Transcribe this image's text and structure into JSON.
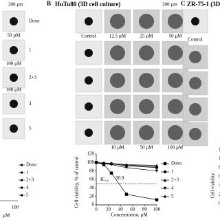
{
  "panel_a": {
    "scale_bar": "200 µm",
    "row_labels": [
      "Doxo",
      "1",
      "2+3",
      "4",
      "5"
    ],
    "captions": [
      "50 µM",
      "100 µM",
      "100 µM"
    ],
    "legend": [
      "Doxo",
      "1",
      "2+3",
      "4",
      "5"
    ],
    "axis_fragments": [
      "100",
      "µM"
    ]
  },
  "panel_b": {
    "letter": "B",
    "title": "HuTu80 (3D cell culture)",
    "scale_bar": "200 µm",
    "top_captions": [
      "Control",
      "12.5 µM",
      "25 µM",
      "50 µM"
    ],
    "bottom_captions": [
      "10 µM",
      "50 µM",
      "100 µM"
    ]
  },
  "panel_c": {
    "letter": "C",
    "title": "ZR-75-1 (3D",
    "caption": "Control",
    "yticks": [
      "120",
      "100",
      "80",
      "60",
      "40",
      "20",
      "0"
    ],
    "ylabel": "Cell viability"
  },
  "chart_data": {
    "type": "line",
    "xlabel": "Concentration, µM",
    "ylabel": "Cell viability, % of control",
    "x": [
      0,
      12.5,
      25,
      50,
      100
    ],
    "xlim": [
      0,
      100
    ],
    "xticks": [
      0,
      20,
      40,
      60,
      80,
      100
    ],
    "ylim": [
      0,
      120
    ],
    "yticks": [
      0,
      20,
      40,
      60,
      80,
      100,
      120
    ],
    "reference_line": 50,
    "annotations": [
      "IC₅₀",
      "30.9"
    ],
    "series": [
      {
        "name": "Doxo",
        "color": "#000000",
        "marker": "square",
        "values": [
          100,
          95,
          75,
          25,
          12
        ]
      },
      {
        "name": "1",
        "color": "#000000",
        "marker": "circle",
        "values": [
          100,
          98,
          97,
          92,
          88
        ]
      },
      {
        "name": "2+3",
        "color": "#000000",
        "marker": "triangle",
        "values": [
          100,
          99,
          98,
          95,
          93
        ]
      },
      {
        "name": "4",
        "color": "#000000",
        "marker": "down",
        "values": [
          100,
          97,
          95,
          88,
          80
        ]
      },
      {
        "name": "5",
        "color": "#000000",
        "marker": "diamond",
        "values": [
          100,
          98,
          96,
          94,
          90
        ]
      }
    ]
  }
}
